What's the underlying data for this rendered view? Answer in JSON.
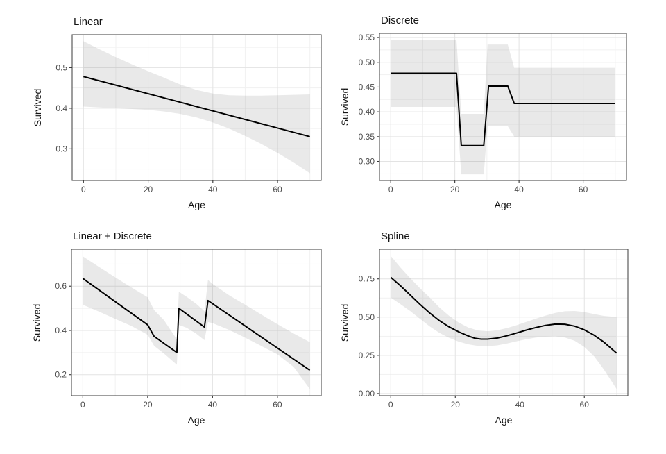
{
  "style": {
    "background": "#ffffff",
    "line_color": "#000000",
    "band_fill": "rgba(110,110,110,0.15)",
    "grid_major": "#e3e3e3",
    "grid_minor": "#f1f1f1",
    "border_color": "#4d4d4d",
    "tick_color": "#333333",
    "tick_label_color": "#4d4d4d",
    "text_color": "#141414"
  },
  "chart_data": [
    {
      "id": "linear",
      "type": "line",
      "title": "Linear",
      "xlabel": "Age",
      "ylabel": "Survived",
      "xlim": [
        -3.5,
        73.5
      ],
      "ylim": [
        0.222,
        0.581
      ],
      "x_ticks": [
        0,
        20,
        40,
        60
      ],
      "x_tick_labels": [
        "0",
        "20",
        "40",
        "60"
      ],
      "x_minor": [
        10,
        30,
        50,
        70
      ],
      "y_ticks": [
        0.3,
        0.4,
        0.5
      ],
      "y_tick_labels": [
        "0.3",
        "0.4",
        "0.5"
      ],
      "y_minor": [
        0.25,
        0.35,
        0.45,
        0.55
      ],
      "line": [
        [
          0,
          0.478
        ],
        [
          70,
          0.33
        ]
      ],
      "band_upper": [
        [
          0,
          0.565
        ],
        [
          5,
          0.545
        ],
        [
          10,
          0.526
        ],
        [
          15,
          0.508
        ],
        [
          20,
          0.491
        ],
        [
          25,
          0.475
        ],
        [
          30,
          0.458
        ],
        [
          35,
          0.445
        ],
        [
          40,
          0.436
        ],
        [
          45,
          0.432
        ],
        [
          50,
          0.431
        ],
        [
          55,
          0.431
        ],
        [
          60,
          0.432
        ],
        [
          65,
          0.433
        ],
        [
          70,
          0.434
        ]
      ],
      "band_lower": [
        [
          0,
          0.404
        ],
        [
          5,
          0.402
        ],
        [
          10,
          0.4
        ],
        [
          15,
          0.398
        ],
        [
          20,
          0.396
        ],
        [
          25,
          0.392
        ],
        [
          30,
          0.386
        ],
        [
          35,
          0.377
        ],
        [
          40,
          0.365
        ],
        [
          45,
          0.35
        ],
        [
          50,
          0.332
        ],
        [
          55,
          0.312
        ],
        [
          60,
          0.29
        ],
        [
          65,
          0.266
        ],
        [
          70,
          0.24
        ]
      ]
    },
    {
      "id": "discrete",
      "type": "line",
      "title": "Discrete",
      "xlabel": "Age",
      "ylabel": "Survived",
      "xlim": [
        -3.5,
        73.5
      ],
      "ylim": [
        0.2615,
        0.5585
      ],
      "x_ticks": [
        0,
        20,
        40,
        60
      ],
      "x_tick_labels": [
        "0",
        "20",
        "40",
        "60"
      ],
      "x_minor": [
        10,
        30,
        50,
        70
      ],
      "y_ticks": [
        0.3,
        0.35,
        0.4,
        0.45,
        0.5,
        0.55
      ],
      "y_tick_labels": [
        "0.30",
        "0.35",
        "0.40",
        "0.45",
        "0.50",
        "0.55"
      ],
      "y_minor": [
        0.275,
        0.325,
        0.375,
        0.425,
        0.475,
        0.525
      ],
      "line": [
        [
          0,
          0.478
        ],
        [
          20.5,
          0.478
        ],
        [
          22,
          0.332
        ],
        [
          29,
          0.332
        ],
        [
          30.5,
          0.452
        ],
        [
          36.5,
          0.452
        ],
        [
          38.5,
          0.417
        ],
        [
          70,
          0.417
        ]
      ],
      "band_upper": [
        [
          0,
          0.545
        ],
        [
          20.5,
          0.545
        ],
        [
          22,
          0.396
        ],
        [
          29,
          0.396
        ],
        [
          30.2,
          0.536
        ],
        [
          36.5,
          0.536
        ],
        [
          38.5,
          0.489
        ],
        [
          70,
          0.489
        ]
      ],
      "band_lower": [
        [
          0,
          0.41
        ],
        [
          20.5,
          0.41
        ],
        [
          22,
          0.274
        ],
        [
          29,
          0.274
        ],
        [
          30.2,
          0.371
        ],
        [
          36.5,
          0.371
        ],
        [
          38.5,
          0.35
        ],
        [
          70,
          0.35
        ]
      ]
    },
    {
      "id": "linear-discrete",
      "type": "line",
      "title": "Linear + Discrete",
      "xlabel": "Age",
      "ylabel": "Survived",
      "xlim": [
        -3.5,
        73.5
      ],
      "ylim": [
        0.105,
        0.767
      ],
      "x_ticks": [
        0,
        20,
        40,
        60
      ],
      "x_tick_labels": [
        "0",
        "20",
        "40",
        "60"
      ],
      "x_minor": [
        10,
        30,
        50,
        70
      ],
      "y_ticks": [
        0.2,
        0.4,
        0.6
      ],
      "y_tick_labels": [
        "0.2",
        "0.4",
        "0.6"
      ],
      "y_minor": [
        0.3,
        0.5,
        0.7
      ],
      "line": [
        [
          0,
          0.635
        ],
        [
          20,
          0.425
        ],
        [
          22,
          0.373
        ],
        [
          29,
          0.3
        ],
        [
          29.6,
          0.5
        ],
        [
          37.5,
          0.415
        ],
        [
          38.6,
          0.535
        ],
        [
          70,
          0.22
        ]
      ],
      "band_upper": [
        [
          0,
          0.735
        ],
        [
          5,
          0.687
        ],
        [
          10,
          0.64
        ],
        [
          15,
          0.594
        ],
        [
          20,
          0.55
        ],
        [
          22,
          0.492
        ],
        [
          25,
          0.447
        ],
        [
          29,
          0.36
        ],
        [
          29.6,
          0.575
        ],
        [
          32,
          0.552
        ],
        [
          35,
          0.52
        ],
        [
          37.5,
          0.487
        ],
        [
          38.6,
          0.628
        ],
        [
          40,
          0.61
        ],
        [
          45,
          0.56
        ],
        [
          50,
          0.517
        ],
        [
          55,
          0.472
        ],
        [
          60,
          0.428
        ],
        [
          65,
          0.386
        ],
        [
          70,
          0.347
        ]
      ],
      "band_lower": [
        [
          0,
          0.516
        ],
        [
          5,
          0.485
        ],
        [
          10,
          0.452
        ],
        [
          15,
          0.42
        ],
        [
          20,
          0.38
        ],
        [
          22,
          0.33
        ],
        [
          25,
          0.296
        ],
        [
          29,
          0.245
        ],
        [
          29.6,
          0.425
        ],
        [
          32,
          0.412
        ],
        [
          35,
          0.385
        ],
        [
          37.5,
          0.356
        ],
        [
          38.6,
          0.438
        ],
        [
          40,
          0.433
        ],
        [
          45,
          0.403
        ],
        [
          50,
          0.368
        ],
        [
          55,
          0.33
        ],
        [
          60,
          0.292
        ],
        [
          65,
          0.235
        ],
        [
          70,
          0.135
        ]
      ]
    },
    {
      "id": "spline",
      "type": "line",
      "title": "Spline",
      "xlabel": "Age",
      "ylabel": "Survived",
      "xlim": [
        -3.5,
        73.5
      ],
      "ylim": [
        -0.014,
        0.944
      ],
      "x_ticks": [
        0,
        20,
        40,
        60
      ],
      "x_tick_labels": [
        "0",
        "20",
        "40",
        "60"
      ],
      "x_minor": [
        10,
        30,
        50,
        70
      ],
      "y_ticks": [
        0.0,
        0.25,
        0.5,
        0.75
      ],
      "y_tick_labels": [
        "0.00",
        "0.25",
        "0.50",
        "0.75"
      ],
      "y_minor": [
        0.125,
        0.375,
        0.625,
        0.875
      ],
      "line": [
        [
          0,
          0.76
        ],
        [
          3,
          0.705
        ],
        [
          6,
          0.645
        ],
        [
          9,
          0.585
        ],
        [
          12,
          0.528
        ],
        [
          15,
          0.478
        ],
        [
          18,
          0.437
        ],
        [
          21,
          0.404
        ],
        [
          24,
          0.377
        ],
        [
          26,
          0.362
        ],
        [
          28,
          0.356
        ],
        [
          30,
          0.356
        ],
        [
          33,
          0.363
        ],
        [
          36,
          0.378
        ],
        [
          39,
          0.396
        ],
        [
          42,
          0.415
        ],
        [
          45,
          0.432
        ],
        [
          48,
          0.446
        ],
        [
          51,
          0.454
        ],
        [
          54,
          0.453
        ],
        [
          57,
          0.441
        ],
        [
          60,
          0.417
        ],
        [
          63,
          0.382
        ],
        [
          66,
          0.338
        ],
        [
          70,
          0.265
        ]
      ],
      "band_upper": [
        [
          0,
          0.9
        ],
        [
          3,
          0.825
        ],
        [
          6,
          0.755
        ],
        [
          9,
          0.69
        ],
        [
          12,
          0.63
        ],
        [
          15,
          0.565
        ],
        [
          18,
          0.51
        ],
        [
          21,
          0.465
        ],
        [
          24,
          0.432
        ],
        [
          27,
          0.413
        ],
        [
          30,
          0.408
        ],
        [
          33,
          0.414
        ],
        [
          36,
          0.428
        ],
        [
          39,
          0.447
        ],
        [
          42,
          0.468
        ],
        [
          45,
          0.49
        ],
        [
          48,
          0.51
        ],
        [
          51,
          0.527
        ],
        [
          54,
          0.538
        ],
        [
          57,
          0.54
        ],
        [
          60,
          0.533
        ],
        [
          63,
          0.52
        ],
        [
          66,
          0.508
        ],
        [
          70,
          0.5
        ]
      ],
      "band_lower": [
        [
          0,
          0.628
        ],
        [
          3,
          0.585
        ],
        [
          6,
          0.54
        ],
        [
          9,
          0.49
        ],
        [
          12,
          0.44
        ],
        [
          15,
          0.398
        ],
        [
          18,
          0.365
        ],
        [
          21,
          0.34
        ],
        [
          24,
          0.322
        ],
        [
          27,
          0.312
        ],
        [
          30,
          0.31
        ],
        [
          33,
          0.315
        ],
        [
          36,
          0.327
        ],
        [
          39,
          0.342
        ],
        [
          42,
          0.355
        ],
        [
          45,
          0.366
        ],
        [
          48,
          0.372
        ],
        [
          51,
          0.374
        ],
        [
          54,
          0.366
        ],
        [
          57,
          0.345
        ],
        [
          60,
          0.305
        ],
        [
          63,
          0.245
        ],
        [
          66,
          0.16
        ],
        [
          70,
          0.03
        ]
      ]
    }
  ]
}
